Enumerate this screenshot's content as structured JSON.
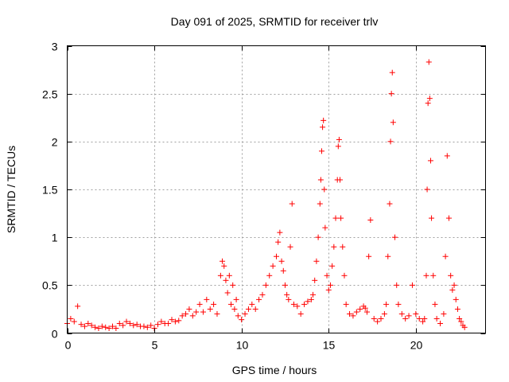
{
  "chart_data": {
    "type": "scatter",
    "title": "Day 091 of 2025, SRMTID for receiver trlv",
    "xlabel": "GPS time / hours",
    "ylabel": "SRMTID / TECUs",
    "xlim": [
      0,
      24
    ],
    "ylim": [
      0,
      3
    ],
    "x_ticks": [
      0,
      5,
      10,
      15,
      20
    ],
    "x_tick_labels": [
      "0",
      "5",
      "10",
      "15",
      "20"
    ],
    "y_ticks": [
      0,
      0.5,
      1,
      1.5,
      2,
      2.5,
      3
    ],
    "y_tick_labels": [
      "0",
      "0.5",
      "1",
      "1.5",
      "2",
      "2.5",
      "3"
    ],
    "grid": true,
    "marker": "+",
    "color": "#ff0000",
    "series": [
      {
        "name": "trlv",
        "x": [
          0.0,
          0.2,
          0.4,
          0.6,
          0.8,
          1.0,
          1.2,
          1.4,
          1.6,
          1.8,
          2.0,
          2.2,
          2.4,
          2.6,
          2.8,
          3.0,
          3.2,
          3.4,
          3.6,
          3.8,
          4.0,
          4.2,
          4.4,
          4.6,
          4.8,
          5.0,
          5.2,
          5.4,
          5.6,
          5.8,
          6.0,
          6.2,
          6.4,
          6.6,
          6.8,
          7.0,
          7.2,
          7.4,
          7.6,
          7.8,
          8.0,
          8.2,
          8.4,
          8.6,
          8.8,
          8.9,
          9.0,
          9.1,
          9.2,
          9.3,
          9.4,
          9.5,
          9.6,
          9.7,
          9.8,
          10.0,
          10.2,
          10.4,
          10.6,
          10.8,
          11.0,
          11.2,
          11.4,
          11.6,
          11.8,
          12.0,
          12.1,
          12.2,
          12.3,
          12.4,
          12.5,
          12.6,
          12.7,
          12.8,
          12.9,
          13.0,
          13.2,
          13.4,
          13.6,
          13.8,
          14.0,
          14.1,
          14.2,
          14.3,
          14.4,
          14.5,
          14.55,
          14.6,
          14.65,
          14.7,
          14.75,
          14.8,
          14.9,
          15.0,
          15.1,
          15.2,
          15.3,
          15.4,
          15.5,
          15.55,
          15.6,
          15.65,
          15.7,
          15.8,
          15.9,
          16.0,
          16.2,
          16.4,
          16.6,
          16.8,
          17.0,
          17.1,
          17.2,
          17.3,
          17.4,
          17.6,
          17.8,
          18.0,
          18.2,
          18.3,
          18.4,
          18.5,
          18.55,
          18.6,
          18.65,
          18.7,
          18.8,
          18.9,
          19.0,
          19.2,
          19.4,
          19.6,
          19.8,
          20.0,
          20.2,
          20.4,
          20.5,
          20.6,
          20.65,
          20.7,
          20.75,
          20.8,
          20.85,
          20.9,
          21.0,
          21.1,
          21.2,
          21.4,
          21.6,
          21.7,
          21.8,
          21.9,
          22.0,
          22.1,
          22.2,
          22.3,
          22.4,
          22.5,
          22.6,
          22.7,
          22.8
        ],
        "y": [
          0.1,
          0.15,
          0.12,
          0.28,
          0.09,
          0.07,
          0.1,
          0.08,
          0.06,
          0.05,
          0.07,
          0.06,
          0.05,
          0.07,
          0.05,
          0.1,
          0.08,
          0.12,
          0.1,
          0.08,
          0.09,
          0.07,
          0.07,
          0.06,
          0.08,
          0.05,
          0.09,
          0.12,
          0.1,
          0.1,
          0.14,
          0.12,
          0.13,
          0.18,
          0.2,
          0.25,
          0.18,
          0.22,
          0.3,
          0.22,
          0.35,
          0.25,
          0.3,
          0.2,
          0.6,
          0.75,
          0.7,
          0.55,
          0.42,
          0.6,
          0.3,
          0.5,
          0.25,
          0.35,
          0.18,
          0.14,
          0.2,
          0.25,
          0.3,
          0.25,
          0.35,
          0.4,
          0.5,
          0.6,
          0.7,
          0.8,
          0.95,
          1.05,
          0.75,
          0.65,
          0.5,
          0.4,
          0.35,
          0.9,
          1.35,
          0.3,
          0.28,
          0.2,
          0.3,
          0.33,
          0.35,
          0.4,
          0.55,
          0.75,
          1.0,
          1.35,
          1.6,
          1.9,
          2.15,
          2.22,
          1.5,
          1.1,
          0.6,
          0.45,
          0.5,
          0.7,
          0.9,
          1.2,
          1.6,
          1.95,
          2.02,
          1.6,
          1.2,
          0.9,
          0.6,
          0.3,
          0.2,
          0.18,
          0.22,
          0.25,
          0.28,
          0.26,
          0.22,
          0.8,
          1.18,
          0.15,
          0.12,
          0.15,
          0.2,
          0.3,
          0.8,
          1.35,
          2.0,
          2.5,
          2.72,
          2.2,
          1.0,
          0.5,
          0.3,
          0.2,
          0.15,
          0.18,
          0.5,
          0.2,
          0.15,
          0.12,
          0.15,
          0.6,
          1.5,
          2.4,
          2.83,
          2.45,
          1.8,
          1.2,
          0.6,
          0.3,
          0.15,
          0.1,
          0.2,
          0.8,
          1.85,
          1.2,
          0.6,
          0.45,
          0.5,
          0.35,
          0.25,
          0.15,
          0.12,
          0.08,
          0.06
        ]
      }
    ]
  }
}
